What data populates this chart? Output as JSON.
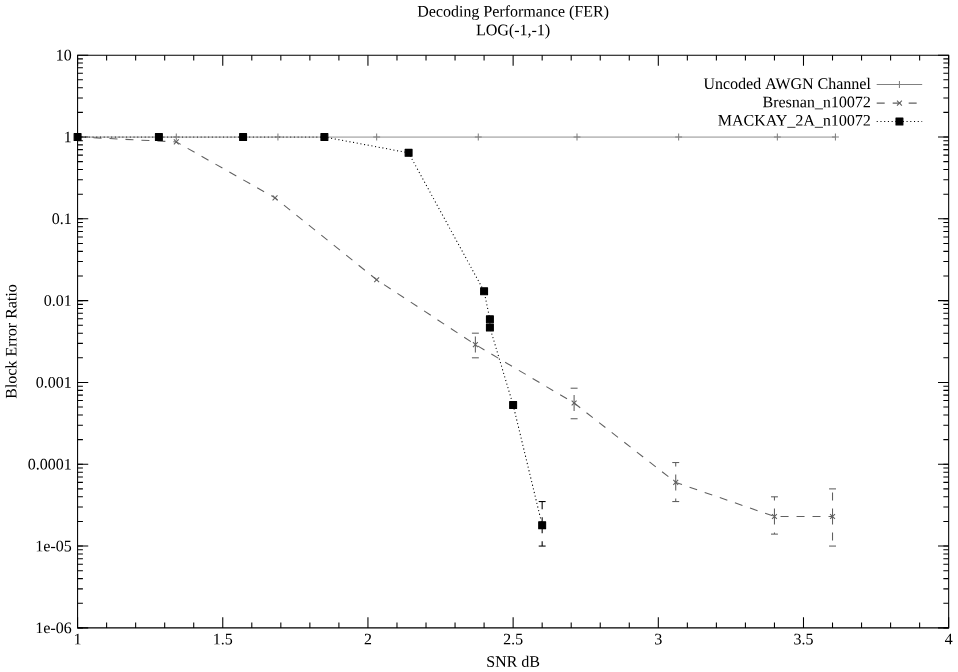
{
  "chart_data": {
    "type": "line",
    "title": "Decoding Performance (FER)",
    "subtitle": "LOG(-1,-1)",
    "xlabel": "SNR dB",
    "ylabel": "Block Error Ratio",
    "log": "y",
    "xlim": [
      1,
      4
    ],
    "ylim": [
      1e-06,
      10
    ],
    "xticks": [
      1,
      1.5,
      2,
      2.5,
      3,
      3.5,
      4
    ],
    "yticks": [
      {
        "value": 1e-06,
        "label": "1e-06"
      },
      {
        "value": 1e-05,
        "label": "1e-05"
      },
      {
        "value": 0.0001,
        "label": "0.0001"
      },
      {
        "value": 0.001,
        "label": "0.001"
      },
      {
        "value": 0.01,
        "label": "0.01"
      },
      {
        "value": 0.1,
        "label": "0.1"
      },
      {
        "value": 1,
        "label": "1"
      },
      {
        "value": 10,
        "label": "10"
      }
    ],
    "grid": false,
    "legend": "top right",
    "series": [
      {
        "name": "Uncoded AWGN Channel",
        "color": "#808080",
        "marker": "cross",
        "line_style": "solid",
        "x": [
          1,
          1.34,
          1.69,
          2.03,
          2.38,
          2.72,
          3.07,
          3.41,
          3.61
        ],
        "values": [
          1,
          1,
          1,
          1,
          1,
          1,
          1,
          1,
          1
        ]
      },
      {
        "name": "Bresnan_n10072",
        "color": "#606060",
        "marker": "cross",
        "line_style": "dashed",
        "x": [
          1,
          1.34,
          1.68,
          2.03,
          2.37,
          2.71,
          3.06,
          3.4,
          3.6
        ],
        "values": [
          1,
          0.87,
          0.18,
          0.018,
          0.0029,
          0.00056,
          6e-05,
          2.3e-05,
          2.3e-05
        ],
        "errors": [
          null,
          null,
          null,
          null,
          [
            0.002,
            0.004
          ],
          [
            0.00036,
            0.00085
          ],
          [
            3.5e-05,
            0.000105
          ],
          [
            1.4e-05,
            4e-05
          ],
          [
            1e-05,
            5e-05
          ]
        ]
      },
      {
        "name": "MACKAY_2A_n10072",
        "color": "#000000",
        "marker": "square",
        "line_style": "dotted",
        "x": [
          1,
          1.28,
          1.57,
          1.85,
          2.14,
          2.4,
          2.42,
          2.42,
          2.5,
          2.6
        ],
        "values": [
          1,
          1,
          1,
          1,
          0.64,
          0.013,
          0.0059,
          0.0047,
          0.00053,
          1.8e-05
        ],
        "errors": [
          null,
          null,
          null,
          null,
          null,
          null,
          null,
          null,
          null,
          [
            1e-05,
            3.5e-05
          ]
        ]
      }
    ]
  }
}
